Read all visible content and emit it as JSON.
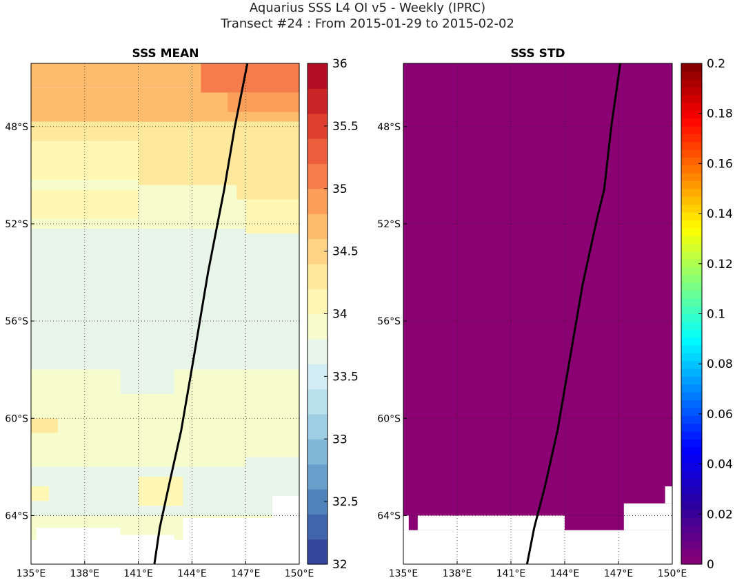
{
  "title_line1": "Aquarius SSS L4 OI v5 - Weekly (IPRC)",
  "title_line2": "Transect #24 : From 2015-01-29 to 2015-02-02",
  "colors": {
    "std_fill": "#8b0073",
    "track": "#000000",
    "land": "#ffffff"
  },
  "chart_data": [
    {
      "type": "heatmap",
      "title": "SSS MEAN",
      "xlim": [
        135,
        150
      ],
      "ylim": [
        -66.0,
        -45.4
      ],
      "x_ticks": [
        135,
        138,
        141,
        144,
        147,
        150
      ],
      "x_tick_labels": [
        "135°E",
        "138°E",
        "141°E",
        "144°E",
        "147°E",
        "150°E"
      ],
      "y_ticks": [
        -48,
        -52,
        -56,
        -60,
        -64
      ],
      "y_tick_labels": [
        "48°S",
        "52°S",
        "56°S",
        "60°S",
        "64°S"
      ],
      "grid": true,
      "colorbar": {
        "range": [
          32,
          36
        ],
        "ticks": [
          32,
          32.5,
          33,
          33.5,
          34,
          34.5,
          35,
          35.5,
          36
        ],
        "tick_labels": [
          "32",
          "32.5",
          "33",
          "33.5",
          "34",
          "34.5",
          "35",
          "35.5",
          "36"
        ],
        "levels": 20,
        "colormap": "RdYlBu_r"
      },
      "bands": [
        {
          "lat_from": -45.4,
          "lat_to": -46.4,
          "value": 34.8
        },
        {
          "lat_from": -46.4,
          "lat_to": -47.8,
          "value": 34.7
        },
        {
          "lat_from": -47.8,
          "lat_to": -48.6,
          "value": 34.3
        },
        {
          "lat_from": -48.6,
          "lat_to": -50.2,
          "value": 34.1
        },
        {
          "lat_from": -50.2,
          "lat_to": -52.2,
          "value": 33.9
        },
        {
          "lat_from": -52.2,
          "lat_to": -54.0,
          "value": 33.8
        },
        {
          "lat_from": -54.0,
          "lat_to": -56.0,
          "value": 33.7
        },
        {
          "lat_from": -56.0,
          "lat_to": -58.0,
          "value": 33.7
        },
        {
          "lat_from": -58.0,
          "lat_to": -62.0,
          "value": 33.9
        },
        {
          "lat_from": -62.0,
          "lat_to": -64.0,
          "value": 33.8
        },
        {
          "lat_from": -64.0,
          "lat_to": -66.0,
          "value": 33.9
        }
      ],
      "patches": [
        {
          "lon": [
            144.5,
            150
          ],
          "lat": [
            -45.4,
            -46.6
          ],
          "value": 35.1
        },
        {
          "lon": [
            146,
            150
          ],
          "lat": [
            -46.6,
            -47.4
          ],
          "value": 34.9
        },
        {
          "lon": [
            141,
            144.5
          ],
          "lat": [
            -46.6,
            -47.8
          ],
          "value": 34.7
        },
        {
          "lon": [
            135,
            140
          ],
          "lat": [
            -48.0,
            -48.6
          ],
          "value": 34.2
        },
        {
          "lon": [
            141,
            150
          ],
          "lat": [
            -48.0,
            -50.4
          ],
          "value": 34.3
        },
        {
          "lon": [
            146.5,
            150
          ],
          "lat": [
            -50.0,
            -51.0
          ],
          "value": 34.2
        },
        {
          "lon": [
            135,
            141
          ],
          "lat": [
            -50.6,
            -51.8
          ],
          "value": 34.0
        },
        {
          "lon": [
            147,
            150
          ],
          "lat": [
            -51.0,
            -52.4
          ],
          "value": 34.0
        },
        {
          "lon": [
            136,
            150
          ],
          "lat": [
            -56.8,
            -57.6
          ],
          "value": 33.6
        },
        {
          "lon": [
            138,
            143
          ],
          "lat": [
            -53.0,
            -54.0
          ],
          "value": 33.7
        },
        {
          "lon": [
            140,
            143
          ],
          "lat": [
            -57.8,
            -59.0
          ],
          "value": 33.7
        },
        {
          "lon": [
            147,
            150
          ],
          "lat": [
            -61.6,
            -63.4
          ],
          "value": 33.7
        },
        {
          "lon": [
            144,
            149
          ],
          "lat": [
            -63.4,
            -64.0
          ],
          "value": 33.7
        },
        {
          "lon": [
            141,
            143.5
          ],
          "lat": [
            -62.4,
            -63.6
          ],
          "value": 34.0
        },
        {
          "lon": [
            135,
            136.5
          ],
          "lat": [
            -60.0,
            -60.6
          ],
          "value": 34.2
        },
        {
          "lon": [
            135,
            136
          ],
          "lat": [
            -62.8,
            -63.4
          ],
          "value": 34.0
        }
      ],
      "land": [
        {
          "lon": [
            135,
            150
          ],
          "lat": [
            -65.0,
            -66.0
          ]
        },
        {
          "lon": [
            135.3,
            140
          ],
          "lat": [
            -64.5,
            -65.0
          ]
        },
        {
          "lon": [
            140,
            143
          ],
          "lat": [
            -64.8,
            -65.0
          ]
        },
        {
          "lon": [
            143.5,
            150
          ],
          "lat": [
            -64.1,
            -65.0
          ]
        },
        {
          "lon": [
            148.5,
            150
          ],
          "lat": [
            -63.2,
            -64.1
          ]
        }
      ],
      "track": {
        "lon": [
          147.1,
          146.4,
          145.8,
          144.9,
          144.1,
          143.4,
          142.7,
          142.2,
          141.9
        ],
        "lat": [
          -45.4,
          -48.0,
          -50.6,
          -54.0,
          -57.5,
          -60.5,
          -62.8,
          -64.5,
          -66.0
        ]
      }
    },
    {
      "type": "heatmap",
      "title": "SSS STD",
      "xlim": [
        135,
        150
      ],
      "ylim": [
        -66.0,
        -45.4
      ],
      "x_ticks": [
        135,
        138,
        141,
        144,
        147,
        150
      ],
      "x_tick_labels": [
        "135°E",
        "138°E",
        "141°E",
        "144°E",
        "147°E",
        "150°E"
      ],
      "y_ticks": [
        -48,
        -52,
        -56,
        -60,
        -64
      ],
      "y_tick_labels": [
        "48°S",
        "52°S",
        "56°S",
        "60°S",
        "64°S"
      ],
      "grid": true,
      "value_uniform": 0,
      "colorbar": {
        "range": [
          0,
          0.2
        ],
        "ticks": [
          0,
          0.02,
          0.04,
          0.06,
          0.08,
          0.1,
          0.12,
          0.14,
          0.16,
          0.18,
          0.2
        ],
        "tick_labels": [
          "0",
          "0.02",
          "0.04",
          "0.06",
          "0.08",
          "0.1",
          "0.12",
          "0.14",
          "0.16",
          "0.18",
          "0.2"
        ],
        "colormap": "jet"
      },
      "land": [
        {
          "lon": [
            135,
            150
          ],
          "lat": [
            -64.6,
            -66.0
          ]
        },
        {
          "lon": [
            135,
            135.3
          ],
          "lat": [
            -64.0,
            -64.6
          ]
        },
        {
          "lon": [
            135.8,
            144.0
          ],
          "lat": [
            -64.0,
            -64.6
          ]
        },
        {
          "lon": [
            147.3,
            150
          ],
          "lat": [
            -63.5,
            -64.6
          ]
        },
        {
          "lon": [
            149.6,
            150
          ],
          "lat": [
            -62.8,
            -63.5
          ]
        }
      ],
      "track": {
        "lon": [
          147.1,
          146.6,
          146.2,
          145.8,
          145.0,
          144.3,
          143.6,
          142.9,
          142.3,
          141.9
        ],
        "lat": [
          -45.4,
          -48.0,
          -50.6,
          -51.8,
          -54.5,
          -57.5,
          -60.5,
          -62.8,
          -64.5,
          -66.0
        ]
      }
    }
  ]
}
